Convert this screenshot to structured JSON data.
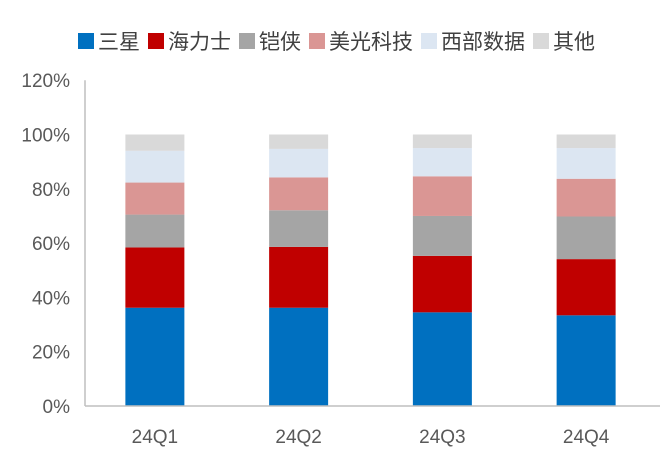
{
  "chart_data": {
    "type": "bar",
    "stacked": true,
    "categories": [
      "24Q1",
      "24Q2",
      "24Q3",
      "24Q4"
    ],
    "series": [
      {
        "name": "三星",
        "color": "#0070C0",
        "values": [
          36.2,
          36.2,
          34.5,
          33.4
        ]
      },
      {
        "name": "海力士",
        "color": "#C00000",
        "values": [
          22.2,
          22.4,
          20.8,
          20.7
        ]
      },
      {
        "name": "铠侠",
        "color": "#A5A5A5",
        "values": [
          12.1,
          13.5,
          14.7,
          15.7
        ]
      },
      {
        "name": "美光科技",
        "color": "#DA9694",
        "values": [
          11.8,
          12.1,
          14.6,
          13.9
        ]
      },
      {
        "name": "西部数据",
        "color": "#DCE6F2",
        "values": [
          11.7,
          10.5,
          10.4,
          11.3
        ]
      },
      {
        "name": "其他",
        "color": "#D9D9D9",
        "values": [
          6.0,
          5.3,
          5.0,
          5.0
        ]
      }
    ],
    "yticks": [
      "0%",
      "20%",
      "40%",
      "60%",
      "80%",
      "100%",
      "120%"
    ],
    "ylim": [
      0,
      120
    ],
    "grid": false,
    "legend": "top"
  }
}
